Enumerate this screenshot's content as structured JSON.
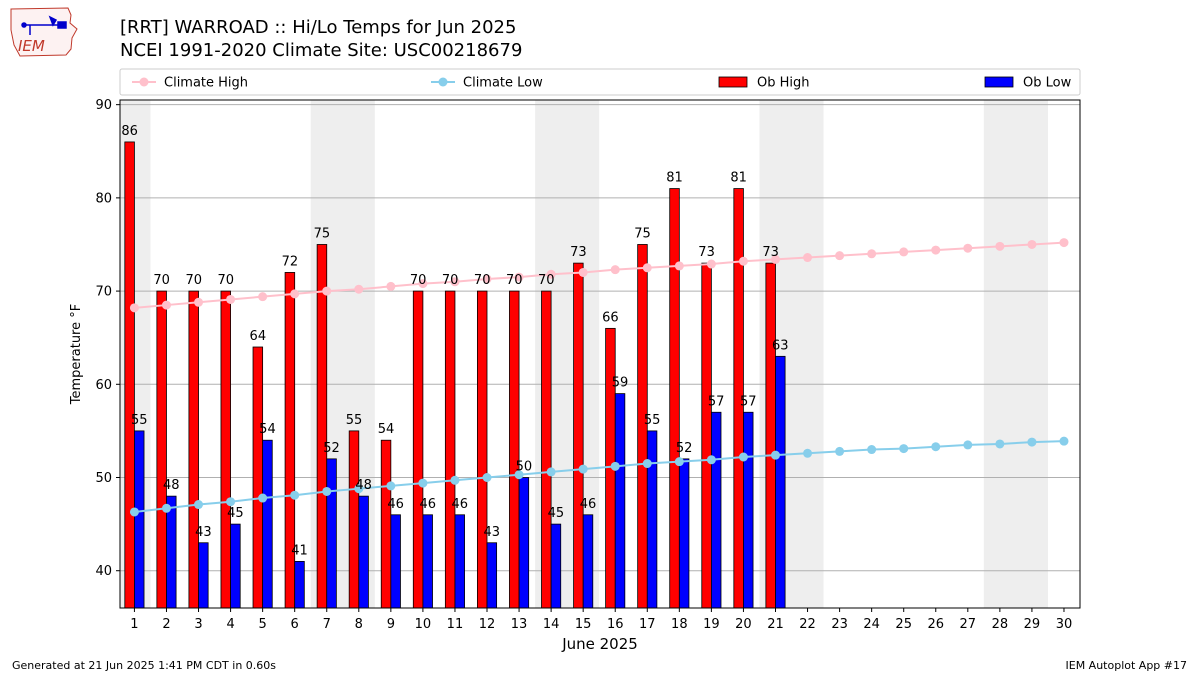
{
  "page": {
    "title_line1": "[RRT] WARROAD :: Hi/Lo Temps for Jun 2025",
    "title_line2": "NCEI 1991-2020 Climate Site: USC00218679",
    "footer_left": "Generated at 21 Jun 2025 1:41 PM CDT in 0.60s",
    "footer_right": "IEM Autoplot App #17",
    "logo_text": "IEM"
  },
  "chart_data": {
    "type": "bar",
    "xlabel": "June 2025",
    "ylabel": "Temperature °F",
    "ylim": [
      36,
      90.5
    ],
    "yticks": [
      40,
      50,
      60,
      70,
      80,
      90
    ],
    "days": [
      1,
      2,
      3,
      4,
      5,
      6,
      7,
      8,
      9,
      10,
      11,
      12,
      13,
      14,
      15,
      16,
      17,
      18,
      19,
      20,
      21,
      22,
      23,
      24,
      25,
      26,
      27,
      28,
      29,
      30
    ],
    "weekend_bands": [
      [
        1,
        1
      ],
      [
        7,
        8
      ],
      [
        14,
        15
      ],
      [
        21,
        22
      ],
      [
        28,
        29
      ]
    ],
    "grid": "horizontal",
    "legend_position": "top",
    "series": [
      {
        "name": "Climate High",
        "kind": "line",
        "color": "#ffc0cb",
        "values": [
          68.2,
          68.5,
          68.8,
          69.1,
          69.4,
          69.7,
          70.0,
          70.2,
          70.5,
          70.8,
          71.0,
          71.3,
          71.5,
          71.8,
          72.0,
          72.3,
          72.5,
          72.7,
          72.9,
          73.2,
          73.4,
          73.6,
          73.8,
          74.0,
          74.2,
          74.4,
          74.6,
          74.8,
          75.0,
          75.2
        ]
      },
      {
        "name": "Climate Low",
        "kind": "line",
        "color": "#87ceeb",
        "values": [
          46.3,
          46.7,
          47.1,
          47.4,
          47.8,
          48.1,
          48.5,
          48.8,
          49.1,
          49.4,
          49.7,
          50.0,
          50.3,
          50.6,
          50.9,
          51.2,
          51.5,
          51.7,
          51.9,
          52.2,
          52.4,
          52.6,
          52.8,
          53.0,
          53.1,
          53.3,
          53.5,
          53.6,
          53.8,
          53.9
        ]
      },
      {
        "name": "Ob High",
        "kind": "bar",
        "color": "#ff0000",
        "values": [
          86,
          70,
          70,
          70,
          64,
          72,
          75,
          55,
          54,
          70,
          70,
          70,
          70,
          70,
          73,
          66,
          75,
          81,
          73,
          81,
          73,
          null,
          null,
          null,
          null,
          null,
          null,
          null,
          null,
          null
        ]
      },
      {
        "name": "Ob Low",
        "kind": "bar",
        "color": "#0000ff",
        "values": [
          55,
          48,
          43,
          45,
          54,
          41,
          52,
          48,
          46,
          46,
          46,
          43,
          50,
          45,
          46,
          59,
          55,
          52,
          57,
          57,
          63,
          null,
          null,
          null,
          null,
          null,
          null,
          null,
          null,
          null
        ]
      }
    ]
  }
}
